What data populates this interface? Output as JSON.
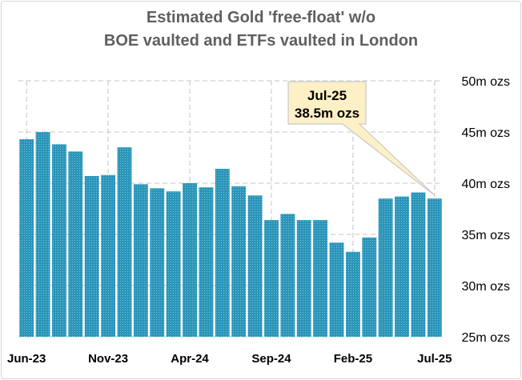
{
  "chart_data": {
    "type": "bar",
    "title": [
      "Estimated Gold 'free-float' w/o",
      "BOE vaulted and ETFs vaulted in London"
    ],
    "xlabel": "",
    "ylabel": "",
    "ylim": [
      25,
      50
    ],
    "yticks": [
      25,
      30,
      35,
      40,
      45,
      50
    ],
    "ytick_labels": [
      "25m ozs",
      "30m ozs",
      "35m ozs",
      "40m ozs",
      "45m ozs",
      "50m ozs"
    ],
    "categories": [
      "Jun-23",
      "Jul-23",
      "Aug-23",
      "Sep-23",
      "Oct-23",
      "Nov-23",
      "Dec-23",
      "Jan-24",
      "Feb-24",
      "Mar-24",
      "Apr-24",
      "May-24",
      "Jun-24",
      "Jul-24",
      "Aug-24",
      "Sep-24",
      "Oct-24",
      "Nov-24",
      "Dec-24",
      "Jan-25",
      "Feb-25",
      "Mar-25",
      "Apr-25",
      "May-25",
      "Jun-25",
      "Jul-25"
    ],
    "values": [
      44.3,
      45.0,
      43.8,
      43.1,
      40.7,
      40.8,
      43.5,
      39.9,
      39.5,
      39.2,
      40.0,
      39.6,
      41.4,
      39.7,
      38.8,
      36.4,
      37.0,
      36.4,
      36.4,
      34.2,
      33.3,
      34.7,
      38.5,
      38.7,
      39.1,
      38.5
    ],
    "xtick_labels": [
      {
        "index": 0,
        "label": "Jun-23"
      },
      {
        "index": 5,
        "label": "Nov-23"
      },
      {
        "index": 10,
        "label": "Apr-24"
      },
      {
        "index": 15,
        "label": "Sep-24"
      },
      {
        "index": 20,
        "label": "Feb-25"
      },
      {
        "index": 25,
        "label": "Jul-25"
      }
    ],
    "grid": true,
    "colors": {
      "bar": "#2a95b8",
      "grid": "#d0d0d0",
      "callout_fill": "#fdf0c6",
      "callout_border": "#c9c9c9"
    },
    "annotation": {
      "index": 25,
      "lines": [
        "Jul-25",
        "38.5m ozs"
      ]
    }
  }
}
